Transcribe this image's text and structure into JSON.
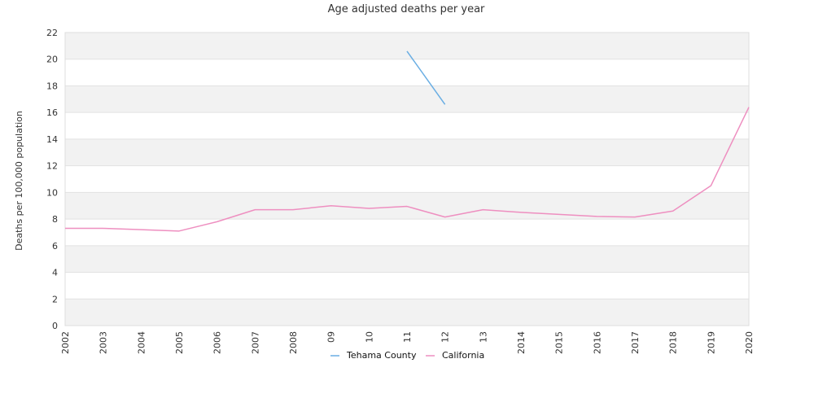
{
  "chart_data": {
    "type": "line",
    "title": "Age adjusted deaths per year",
    "ylabel": "Deaths per 100,000 population",
    "xlabel": "",
    "ylim": [
      0,
      22
    ],
    "yticks": [
      0,
      2,
      4,
      6,
      8,
      10,
      12,
      14,
      16,
      18,
      20,
      22
    ],
    "categories": [
      "2002",
      "2003",
      "2004",
      "2005",
      "2006",
      "2007",
      "2008",
      "09",
      "10",
      "11",
      "12",
      "13",
      "2014",
      "2015",
      "2016",
      "2017",
      "2018",
      "2019",
      "2020"
    ],
    "series": [
      {
        "name": "Tehama County",
        "color": "#6aaee3",
        "values": [
          null,
          null,
          null,
          null,
          null,
          null,
          null,
          null,
          null,
          20.6,
          16.6,
          null,
          null,
          null,
          null,
          null,
          null,
          null,
          null
        ]
      },
      {
        "name": "California",
        "color": "#ee8fc0",
        "values": [
          7.3,
          7.3,
          7.2,
          7.1,
          7.8,
          8.7,
          8.7,
          9.0,
          8.8,
          8.95,
          8.15,
          8.7,
          8.5,
          8.35,
          8.2,
          8.15,
          8.6,
          10.5,
          16.4
        ]
      }
    ],
    "grid": true,
    "legend_position": "bottom"
  }
}
